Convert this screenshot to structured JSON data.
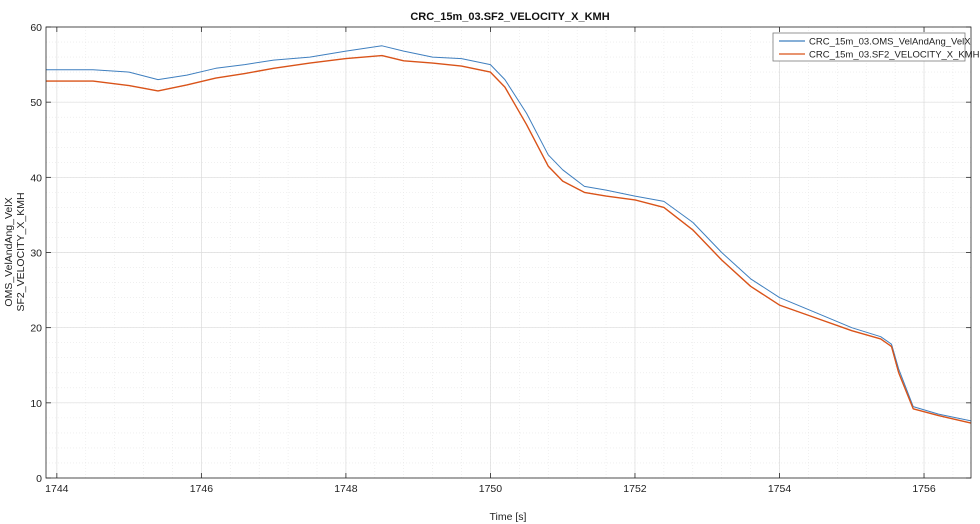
{
  "chart_data": {
    "type": "line",
    "title": "CRC_15m_03.SF2_VELOCITY_X_KMH",
    "xlabel": "Time [s]",
    "ylabel_lines": [
      "OMS_VelAndAng_VelX",
      "SF2_VELOCITY_X_KMH"
    ],
    "xlim": [
      1743.85,
      1756.65
    ],
    "ylim": [
      0,
      60
    ],
    "xticks": [
      1744,
      1746,
      1748,
      1750,
      1752,
      1754,
      1756
    ],
    "yticks": [
      0,
      10,
      20,
      30,
      40,
      50,
      60
    ],
    "grid": true,
    "minor_grid": true,
    "legend_position": "top-right",
    "series": [
      {
        "name": "CRC_15m_03.OMS_VelAndAng_VelX",
        "color": "#3f7fbf",
        "x": [
          1743.85,
          1744.5,
          1745.0,
          1745.4,
          1745.8,
          1746.2,
          1746.6,
          1747.0,
          1747.5,
          1748.0,
          1748.5,
          1748.8,
          1749.2,
          1749.6,
          1750.0,
          1750.2,
          1750.5,
          1750.8,
          1751.0,
          1751.3,
          1751.6,
          1752.0,
          1752.4,
          1752.8,
          1753.2,
          1753.6,
          1754.0,
          1754.5,
          1755.0,
          1755.4,
          1755.55,
          1755.65,
          1755.85,
          1756.2,
          1756.65
        ],
        "y": [
          54.3,
          54.3,
          54.0,
          53.0,
          53.6,
          54.5,
          55.0,
          55.6,
          56.0,
          56.8,
          57.5,
          56.8,
          56.0,
          55.8,
          55.0,
          53.0,
          48.5,
          43.0,
          41.0,
          38.8,
          38.3,
          37.5,
          36.8,
          34.0,
          30.0,
          26.5,
          24.0,
          22.0,
          20.0,
          18.8,
          17.8,
          14.5,
          9.5,
          8.5,
          7.6
        ]
      },
      {
        "name": "CRC_15m_03.SF2_VELOCITY_X_KMH",
        "color": "#d95319",
        "x": [
          1743.85,
          1744.5,
          1745.0,
          1745.4,
          1745.8,
          1746.2,
          1746.6,
          1747.0,
          1747.5,
          1748.0,
          1748.5,
          1748.8,
          1749.2,
          1749.6,
          1750.0,
          1750.2,
          1750.5,
          1750.8,
          1751.0,
          1751.3,
          1751.6,
          1752.0,
          1752.4,
          1752.8,
          1753.2,
          1753.6,
          1754.0,
          1754.5,
          1755.0,
          1755.4,
          1755.55,
          1755.65,
          1755.85,
          1756.2,
          1756.65
        ],
        "y": [
          52.8,
          52.8,
          52.2,
          51.5,
          52.3,
          53.2,
          53.8,
          54.5,
          55.2,
          55.8,
          56.2,
          55.5,
          55.2,
          54.8,
          54.0,
          52.0,
          47.0,
          41.5,
          39.5,
          38.0,
          37.5,
          37.0,
          36.0,
          33.0,
          29.0,
          25.5,
          23.0,
          21.3,
          19.6,
          18.5,
          17.5,
          14.0,
          9.2,
          8.3,
          7.3
        ]
      }
    ]
  }
}
